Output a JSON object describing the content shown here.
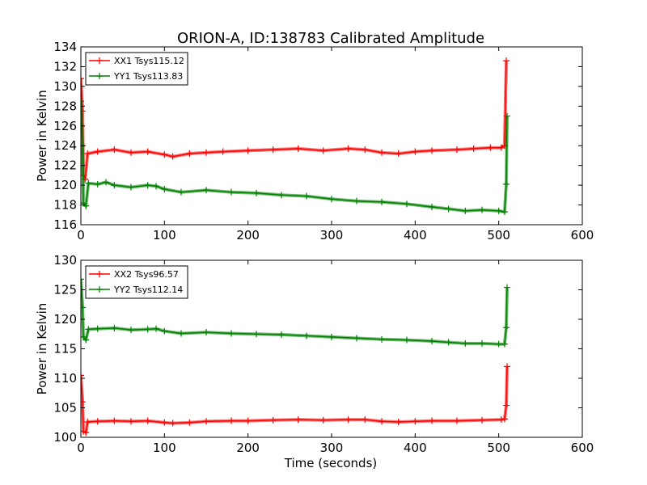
{
  "figure": {
    "title": "ORION-A, ID:138783 Calibrated Amplitude",
    "xlabel": "Time (seconds)"
  },
  "chart_data": [
    {
      "type": "line",
      "ylabel": "Power in Kelvin",
      "xlim": [
        0,
        600
      ],
      "ylim": [
        116,
        134
      ],
      "xticks": [
        0,
        100,
        200,
        300,
        400,
        500,
        600
      ],
      "yticks": [
        116,
        118,
        120,
        122,
        124,
        126,
        128,
        130,
        132,
        134
      ],
      "legend_placement": "top-left",
      "grid": false,
      "series": [
        {
          "name": "XX1 Tsys115.12",
          "color": "#ff0000",
          "points": [
            [
              0,
              130.8
            ],
            [
              2,
              127.5
            ],
            [
              3,
              121.0
            ],
            [
              5,
              120.6
            ],
            [
              8,
              123.2
            ],
            [
              20,
              123.4
            ],
            [
              40,
              123.6
            ],
            [
              60,
              123.3
            ],
            [
              80,
              123.4
            ],
            [
              100,
              123.1
            ],
            [
              110,
              122.9
            ],
            [
              130,
              123.2
            ],
            [
              150,
              123.3
            ],
            [
              170,
              123.4
            ],
            [
              200,
              123.5
            ],
            [
              230,
              123.6
            ],
            [
              260,
              123.7
            ],
            [
              290,
              123.5
            ],
            [
              320,
              123.7
            ],
            [
              340,
              123.6
            ],
            [
              360,
              123.3
            ],
            [
              380,
              123.2
            ],
            [
              400,
              123.4
            ],
            [
              420,
              123.5
            ],
            [
              450,
              123.6
            ],
            [
              470,
              123.7
            ],
            [
              490,
              123.8
            ],
            [
              503,
              123.8
            ],
            [
              507,
              124.0
            ],
            [
              509,
              132.6
            ]
          ]
        },
        {
          "name": "YY1 Tsys113.83",
          "color": "#008000",
          "points": [
            [
              0,
              128.5
            ],
            [
              2,
              124.0
            ],
            [
              3,
              118.2
            ],
            [
              6,
              117.9
            ],
            [
              9,
              120.2
            ],
            [
              20,
              120.1
            ],
            [
              30,
              120.3
            ],
            [
              40,
              120.0
            ],
            [
              60,
              119.8
            ],
            [
              80,
              120.0
            ],
            [
              90,
              119.9
            ],
            [
              100,
              119.6
            ],
            [
              120,
              119.3
            ],
            [
              150,
              119.5
            ],
            [
              180,
              119.3
            ],
            [
              210,
              119.2
            ],
            [
              240,
              119.0
            ],
            [
              270,
              118.9
            ],
            [
              300,
              118.6
            ],
            [
              330,
              118.4
            ],
            [
              360,
              118.3
            ],
            [
              390,
              118.1
            ],
            [
              420,
              117.8
            ],
            [
              440,
              117.6
            ],
            [
              460,
              117.4
            ],
            [
              480,
              117.5
            ],
            [
              500,
              117.4
            ],
            [
              507,
              117.3
            ],
            [
              509,
              120.1
            ],
            [
              510,
              127.0
            ]
          ]
        }
      ]
    },
    {
      "type": "line",
      "ylabel": "Power in Kelvin",
      "xlabel": "Time (seconds)",
      "xlim": [
        0,
        600
      ],
      "ylim": [
        100,
        130
      ],
      "xticks": [
        0,
        100,
        200,
        300,
        400,
        500,
        600
      ],
      "yticks": [
        100,
        105,
        110,
        115,
        120,
        125,
        130
      ],
      "legend_placement": "top-left",
      "grid": false,
      "series": [
        {
          "name": "XX2 Tsys96.57",
          "color": "#ff0000",
          "points": [
            [
              0,
              110.5
            ],
            [
              2,
              106.0
            ],
            [
              3,
              101.0
            ],
            [
              6,
              100.8
            ],
            [
              8,
              102.6
            ],
            [
              20,
              102.7
            ],
            [
              40,
              102.8
            ],
            [
              60,
              102.7
            ],
            [
              80,
              102.8
            ],
            [
              100,
              102.5
            ],
            [
              110,
              102.4
            ],
            [
              130,
              102.5
            ],
            [
              150,
              102.7
            ],
            [
              180,
              102.8
            ],
            [
              200,
              102.8
            ],
            [
              230,
              102.9
            ],
            [
              260,
              103.0
            ],
            [
              290,
              102.9
            ],
            [
              320,
              103.0
            ],
            [
              340,
              103.0
            ],
            [
              360,
              102.7
            ],
            [
              380,
              102.6
            ],
            [
              400,
              102.7
            ],
            [
              420,
              102.8
            ],
            [
              450,
              102.8
            ],
            [
              480,
              102.9
            ],
            [
              503,
              103.0
            ],
            [
              507,
              103.1
            ],
            [
              509,
              105.4
            ],
            [
              510,
              112.0
            ]
          ]
        },
        {
          "name": "YY2 Tsys112.14",
          "color": "#008000",
          "points": [
            [
              0,
              126.8
            ],
            [
              2,
              122.0
            ],
            [
              3,
              117.0
            ],
            [
              6,
              116.5
            ],
            [
              9,
              118.3
            ],
            [
              20,
              118.4
            ],
            [
              40,
              118.5
            ],
            [
              60,
              118.2
            ],
            [
              80,
              118.3
            ],
            [
              90,
              118.4
            ],
            [
              100,
              118.0
            ],
            [
              120,
              117.6
            ],
            [
              150,
              117.8
            ],
            [
              180,
              117.6
            ],
            [
              210,
              117.5
            ],
            [
              240,
              117.4
            ],
            [
              270,
              117.2
            ],
            [
              300,
              117.0
            ],
            [
              330,
              116.8
            ],
            [
              360,
              116.6
            ],
            [
              390,
              116.5
            ],
            [
              420,
              116.3
            ],
            [
              440,
              116.1
            ],
            [
              460,
              115.9
            ],
            [
              480,
              115.9
            ],
            [
              500,
              115.8
            ],
            [
              507,
              115.8
            ],
            [
              509,
              118.6
            ],
            [
              510,
              125.4
            ]
          ]
        }
      ]
    }
  ]
}
